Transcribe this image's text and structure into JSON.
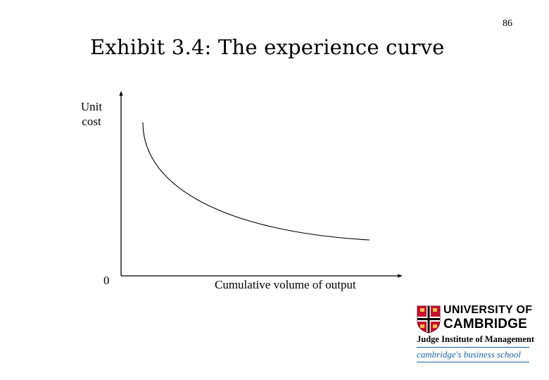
{
  "page_number": "86",
  "title": "Exhibit 3.4: The experience curve",
  "diagram": {
    "y_axis_label": [
      "Unit",
      "cost"
    ],
    "x_axis_label": "Cumulative volume of output",
    "origin_label": "0"
  },
  "logo": {
    "line1": "UNIVERSITY OF",
    "line2": "CAMBRIDGE",
    "line3": "Judge Institute of Management",
    "tagline": "cambridge's business school"
  }
}
